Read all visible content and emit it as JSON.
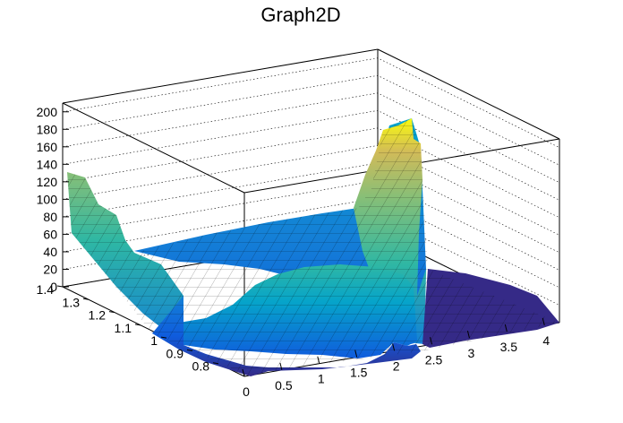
{
  "chart_data": {
    "type": "surface",
    "title": "Graph2D",
    "xlabel": "",
    "ylabel": "",
    "zlabel": "",
    "x_range": [
      0,
      4.2
    ],
    "y_range": [
      0.7,
      1.4
    ],
    "z_range": [
      0,
      210
    ],
    "x_ticks": [
      "0",
      "0.5",
      "1",
      "1.5",
      "2",
      "2.5",
      "3",
      "3.5",
      "4"
    ],
    "y_ticks": [
      "1.4",
      "1.3",
      "1.2",
      "1.1",
      "1",
      "0.9",
      "0.8"
    ],
    "z_ticks": [
      "0",
      "20",
      "40",
      "60",
      "80",
      "100",
      "120",
      "140",
      "160",
      "180",
      "200"
    ],
    "grid": true,
    "colormap": [
      "#352a87",
      "#0f5cdd",
      "#1481d6",
      "#06a4ca",
      "#2eb7a4",
      "#87bf77",
      "#d1bb59",
      "#fec832",
      "#f9fb0e"
    ],
    "surface_samples": [
      {
        "x": 0.0,
        "y": 1.4,
        "z": 126
      },
      {
        "x": 0.5,
        "y": 1.2,
        "z": 55
      },
      {
        "x": 2.0,
        "y": 1.3,
        "z": 170
      },
      {
        "x": 2.1,
        "y": 1.3,
        "z": 185
      },
      {
        "x": 2.2,
        "y": 1.2,
        "z": 0
      }
    ]
  }
}
